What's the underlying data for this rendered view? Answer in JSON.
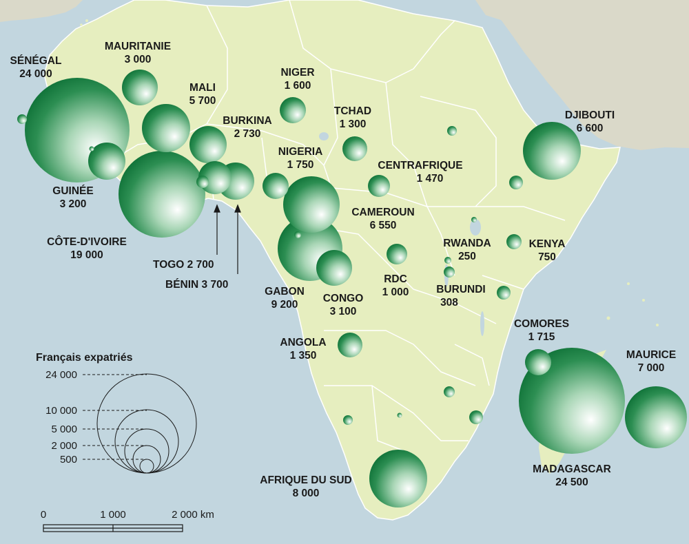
{
  "colors": {
    "sea": "#c2d6df",
    "land_africa": "#e6eebf",
    "land_other": "#dad9c9",
    "border": "#ffffff",
    "bubble_dark": "#0c7a3a",
    "bubble_light": "#ffffff",
    "text": "#1a1a1a"
  },
  "countries": [
    {
      "id": "senegal",
      "name": "SÉNÉGAL",
      "value": "24 000",
      "count": 24000
    },
    {
      "id": "mauritanie",
      "name": "MAURITANIE",
      "value": "3 000",
      "count": 3000
    },
    {
      "id": "mali",
      "name": "MALI",
      "value": "5 700",
      "count": 5700
    },
    {
      "id": "niger",
      "name": "NIGER",
      "value": "1 600",
      "count": 1600
    },
    {
      "id": "tchad",
      "name": "TCHAD",
      "value": "1 300",
      "count": 1300
    },
    {
      "id": "burkina",
      "name": "BURKINA",
      "value": "2 730",
      "count": 2730
    },
    {
      "id": "djibouti",
      "name": "DJIBOUTI",
      "value": "6 600",
      "count": 6600
    },
    {
      "id": "nigeria",
      "name": "NIGERIA",
      "value": "1 750",
      "count": 1750
    },
    {
      "id": "centrafrique",
      "name": "CENTRAFRIQUE",
      "value": "1 470",
      "count": 1470
    },
    {
      "id": "guinee",
      "name": "GUINÉE",
      "value": "3 200",
      "count": 3200
    },
    {
      "id": "cameroun",
      "name": "CAMEROUN",
      "value": "6 550",
      "count": 6550
    },
    {
      "id": "cotedivoire",
      "name": "CÔTE-D'IVOIRE",
      "value": "19 000",
      "count": 19000
    },
    {
      "id": "rwanda",
      "name": "RWANDA",
      "value": "250",
      "count": 250
    },
    {
      "id": "kenya",
      "name": "KENYA",
      "value": "750",
      "count": 750
    },
    {
      "id": "togo",
      "name": "TOGO",
      "value": "2 700",
      "count": 2700
    },
    {
      "id": "benin",
      "name": "BÉNIN",
      "value": "3 700",
      "count": 3700
    },
    {
      "id": "rdc",
      "name": "RDC",
      "value": "1 000",
      "count": 1000
    },
    {
      "id": "burundi",
      "name": "BURUNDI",
      "value": "308",
      "count": 308
    },
    {
      "id": "gabon",
      "name": "GABON",
      "value": "9 200",
      "count": 9200
    },
    {
      "id": "congo",
      "name": "CONGO",
      "value": "3 100",
      "count": 3100
    },
    {
      "id": "comores",
      "name": "COMORES",
      "value": "1 715",
      "count": 1715
    },
    {
      "id": "maurice",
      "name": "MAURICE",
      "value": "7 000",
      "count": 7000
    },
    {
      "id": "angola",
      "name": "ANGOLA",
      "value": "1 350",
      "count": 1350
    },
    {
      "id": "madagascar",
      "name": "MADAGASCAR",
      "value": "24 500",
      "count": 24500
    },
    {
      "id": "afriquedusud",
      "name": "AFRIQUE DU SUD",
      "value": "8 000",
      "count": 8000
    }
  ],
  "legend": {
    "title": "Français expatriés",
    "values": [
      {
        "label": "24 000",
        "count": 24000
      },
      {
        "label": "10 000",
        "count": 10000
      },
      {
        "label": "5 000",
        "count": 5000
      },
      {
        "label": "2 000",
        "count": 2000
      },
      {
        "label": "500",
        "count": 500
      }
    ]
  },
  "scale_bar": {
    "labels": [
      "0",
      "1 000",
      "2 000 km"
    ]
  }
}
